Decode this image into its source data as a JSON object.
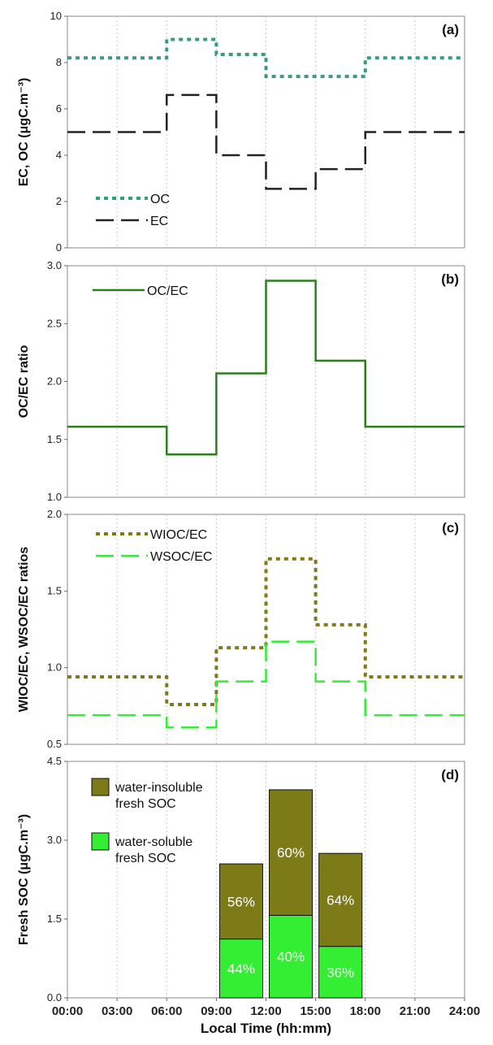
{
  "xaxis": {
    "label": "Local Time (hh:mm)",
    "ticks": [
      "00:00",
      "03:00",
      "06:00",
      "09:00",
      "12:00",
      "15:00",
      "18:00",
      "21:00",
      "24:00"
    ],
    "range": [
      0,
      24
    ]
  },
  "colors": {
    "oc": "#3a9a7a",
    "ec": "#222222",
    "ocec": "#2e7d1e",
    "wioc": "#7d7a18",
    "wsoc": "#33ee33",
    "bar_insoluble": "#7d7a18",
    "bar_soluble": "#33ee33"
  },
  "chart_data": [
    {
      "type": "line",
      "panel_label": "(a)",
      "ylabel": "EC, OC (μgC.m⁻³)",
      "ylim": [
        0,
        10
      ],
      "yticks": [
        "0",
        "2",
        "4",
        "6",
        "8",
        "10"
      ],
      "step": true,
      "x_edges": [
        0,
        6,
        9,
        12,
        15,
        18,
        24
      ],
      "series": [
        {
          "name": "OC",
          "values": [
            8.2,
            9.0,
            8.35,
            7.4,
            7.4,
            8.2
          ],
          "style": "dotted"
        },
        {
          "name": "EC",
          "values": [
            5.0,
            6.6,
            4.0,
            2.55,
            3.4,
            5.0
          ],
          "style": "dashed"
        }
      ],
      "legend": "bottom-left"
    },
    {
      "type": "line",
      "panel_label": "(b)",
      "ylabel": "OC/EC ratio",
      "ylim": [
        1.0,
        3.0
      ],
      "yticks": [
        "1.0",
        "1.5",
        "2.0",
        "2.5",
        "3.0"
      ],
      "step": true,
      "x_edges": [
        0,
        6,
        9,
        12,
        15,
        18,
        24
      ],
      "series": [
        {
          "name": "OC/EC",
          "values": [
            1.61,
            1.37,
            2.07,
            2.87,
            2.18,
            1.61
          ],
          "style": "solid"
        }
      ],
      "legend": "top-left"
    },
    {
      "type": "line",
      "panel_label": "(c)",
      "ylabel": "WIOC/EC, WSOC/EC ratios",
      "ylim": [
        0.5,
        2.0
      ],
      "yticks": [
        "0.5",
        "1.0",
        "1.5",
        "2.0"
      ],
      "step": true,
      "x_edges": [
        0,
        6,
        9,
        12,
        15,
        18,
        24
      ],
      "series": [
        {
          "name": "WIOC/EC",
          "values": [
            0.94,
            0.76,
            1.13,
            1.71,
            1.28,
            0.94
          ],
          "style": "dotted"
        },
        {
          "name": "WSOC/EC",
          "values": [
            0.69,
            0.61,
            0.91,
            1.17,
            0.91,
            0.69
          ],
          "style": "dashed"
        }
      ],
      "legend": "top-left"
    },
    {
      "type": "bar",
      "stacked": true,
      "panel_label": "(d)",
      "ylabel": "Fresh SOC (μgC.m⁻³)",
      "ylim": [
        0,
        4.5
      ],
      "yticks": [
        "0.0",
        "1.5",
        "3.0",
        "4.5"
      ],
      "bars": [
        {
          "x_start": 9,
          "x_end": 12,
          "soluble": 1.12,
          "insoluble": 1.43,
          "soluble_pct": "44%",
          "insoluble_pct": "56%"
        },
        {
          "x_start": 12,
          "x_end": 15,
          "soluble": 1.57,
          "insoluble": 2.39,
          "soluble_pct": "40%",
          "insoluble_pct": "60%"
        },
        {
          "x_start": 15,
          "x_end": 18,
          "soluble": 0.98,
          "insoluble": 1.77,
          "soluble_pct": "36%",
          "insoluble_pct": "64%"
        }
      ],
      "series": [
        {
          "name": "water-insoluble fresh SOC",
          "lines": [
            "water-insoluble",
            "fresh SOC"
          ]
        },
        {
          "name": "water-soluble fresh SOC",
          "lines": [
            "water-soluble",
            "fresh SOC"
          ]
        }
      ],
      "legend": "top-left"
    }
  ]
}
